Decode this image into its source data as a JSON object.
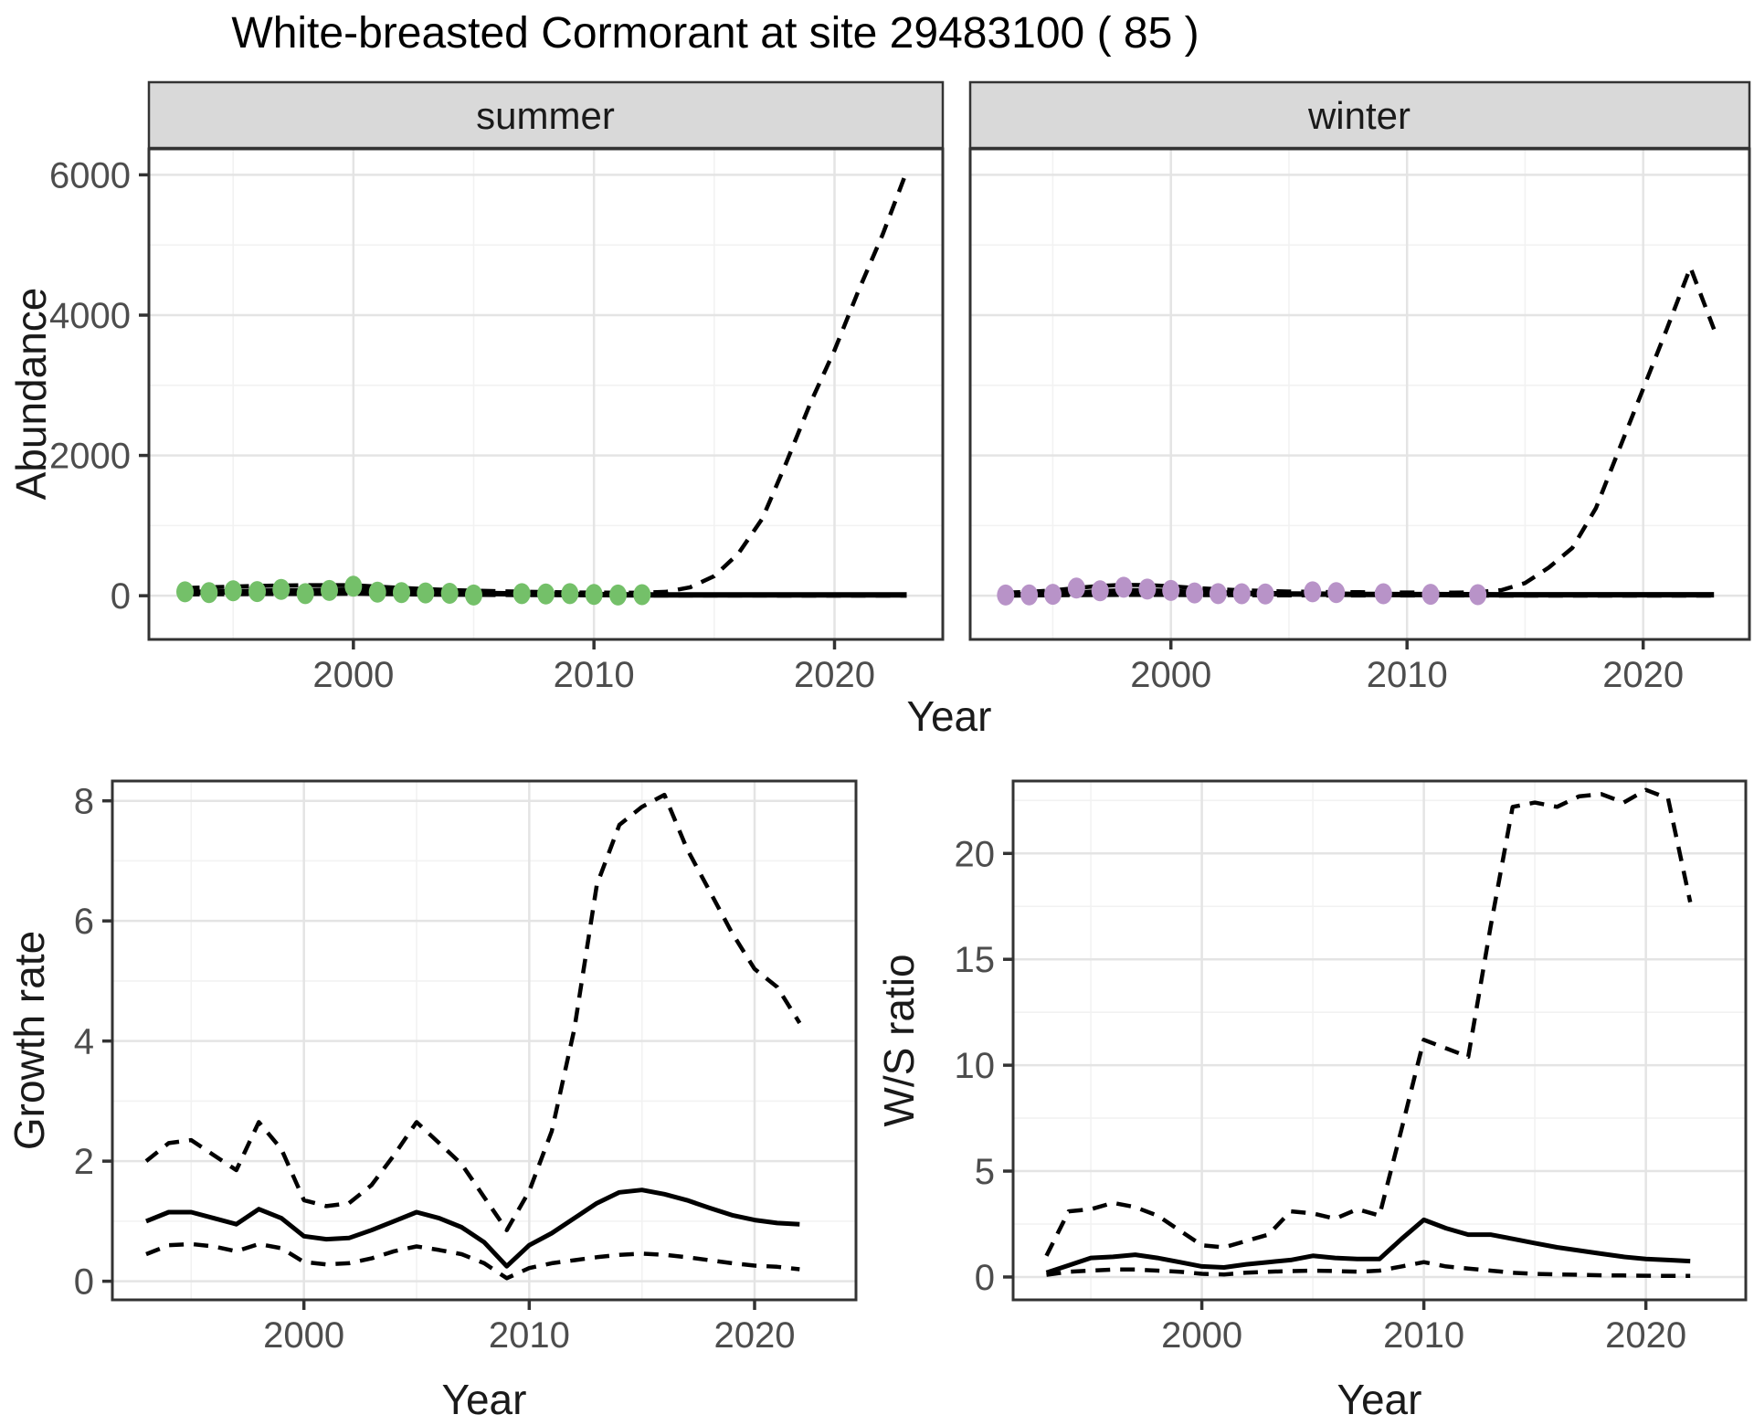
{
  "title": "White-breasted Cormorant at site 29483100 ( 85 )",
  "axes": {
    "year_label": "Year",
    "abundance_label": "Abundance",
    "growth_label": "Growth rate",
    "ws_label": "W/S ratio"
  },
  "facets": {
    "summer": "summer",
    "winter": "winter"
  },
  "colors": {
    "summer_point": "#74c069",
    "winter_point": "#b893c8",
    "line": "#000000",
    "strip_bg": "#d9d9d9",
    "panel_border": "#333333",
    "grid_major": "#e4e4e4",
    "grid_minor": "#f2f2f2",
    "tick_text": "#4d4d4d",
    "label_text": "#1a1a1a"
  },
  "chart_data": [
    {
      "id": "abundance_summer",
      "type": "line",
      "facet": "summer",
      "ylabel": "Abundance",
      "xlabel": "Year",
      "x_range": [
        1991.5,
        2024.5
      ],
      "y_range": [
        -623,
        6370
      ],
      "x_ticks": [
        2000,
        2010,
        2020
      ],
      "x_minor": [
        1995,
        2005,
        2015
      ],
      "y_ticks": [
        0,
        2000,
        4000,
        6000
      ],
      "y_minor": [
        1000,
        3000,
        5000
      ],
      "series": {
        "median": {
          "line": "solid",
          "x_start": 1993,
          "y": [
            45,
            50,
            58,
            65,
            68,
            72,
            76,
            80,
            70,
            60,
            50,
            42,
            35,
            30,
            26,
            22,
            19,
            16,
            14,
            13,
            12,
            12,
            12,
            12,
            12,
            12,
            12,
            12,
            12,
            12,
            12
          ]
        },
        "upper_ci": {
          "line": "dashed",
          "x_start": 1993,
          "y": [
            110,
            120,
            130,
            140,
            145,
            150,
            150,
            150,
            130,
            112,
            95,
            82,
            72,
            64,
            58,
            52,
            48,
            45,
            43,
            42,
            55,
            120,
            280,
            600,
            1100,
            1900,
            2750,
            3500,
            4350,
            5150,
            6050
          ]
        },
        "lower_ci": {
          "line": "dashed",
          "x_start": 1993,
          "y": [
            18,
            20,
            22,
            24,
            25,
            26,
            27,
            28,
            24,
            20,
            17,
            14,
            12,
            10,
            9,
            8,
            7,
            6,
            5,
            5,
            4,
            4,
            3,
            3,
            3,
            2,
            2,
            2,
            2,
            2,
            2
          ]
        }
      },
      "points": {
        "color": "summer_point",
        "x": [
          1993,
          1994,
          1995,
          1996,
          1997,
          1998,
          1999,
          2000,
          2001,
          2002,
          2003,
          2004,
          2005,
          2007,
          2008,
          2009,
          2010,
          2011,
          2012
        ],
        "y": [
          55,
          45,
          70,
          60,
          90,
          30,
          75,
          135,
          50,
          45,
          40,
          35,
          10,
          30,
          25,
          30,
          18,
          10,
          15
        ]
      }
    },
    {
      "id": "abundance_winter",
      "type": "line",
      "facet": "winter",
      "ylabel": "Abundance",
      "xlabel": "Year",
      "x_range": [
        1991.5,
        2024.5
      ],
      "y_range": [
        -623,
        6370
      ],
      "x_ticks": [
        2000,
        2010,
        2020
      ],
      "x_minor": [
        1995,
        2005,
        2015
      ],
      "y_ticks": [
        0,
        2000,
        4000,
        6000
      ],
      "y_minor": [
        1000,
        3000,
        5000
      ],
      "series": {
        "median": {
          "line": "solid",
          "x_start": 1993,
          "y": [
            12,
            15,
            22,
            38,
            55,
            70,
            68,
            60,
            48,
            40,
            34,
            29,
            25,
            23,
            21,
            19,
            18,
            17,
            16,
            15,
            15,
            14,
            14,
            14,
            14,
            14,
            14,
            14,
            14,
            14,
            14
          ]
        },
        "upper_ci": {
          "line": "dashed",
          "x_start": 1993,
          "y": [
            45,
            55,
            75,
            110,
            140,
            155,
            150,
            135,
            110,
            92,
            78,
            68,
            60,
            55,
            52,
            50,
            48,
            46,
            45,
            44,
            50,
            80,
            180,
            400,
            680,
            1250,
            2100,
            2950,
            3800,
            4680,
            3800
          ]
        },
        "lower_ci": {
          "line": "dashed",
          "x_start": 1993,
          "y": [
            4,
            5,
            6,
            8,
            10,
            12,
            12,
            11,
            9,
            8,
            7,
            6,
            5,
            5,
            4,
            4,
            4,
            3,
            3,
            3,
            3,
            2,
            2,
            2,
            2,
            2,
            2,
            2,
            2,
            2,
            2
          ]
        }
      },
      "points": {
        "color": "winter_point",
        "x": [
          1993,
          1994,
          1995,
          1996,
          1997,
          1998,
          1999,
          2000,
          2001,
          2002,
          2003,
          2004,
          2006,
          2007,
          2009,
          2011,
          2013
        ],
        "y": [
          10,
          12,
          20,
          110,
          70,
          120,
          95,
          75,
          40,
          30,
          28,
          25,
          55,
          45,
          28,
          20,
          15
        ]
      }
    },
    {
      "id": "growth_rate",
      "type": "line",
      "facet": null,
      "ylabel": "Growth rate",
      "xlabel": "Year",
      "x_range": [
        1991.5,
        2024.5
      ],
      "y_range": [
        -0.31,
        8.33
      ],
      "x_ticks": [
        2000,
        2010,
        2020
      ],
      "x_minor": [
        1995,
        2005,
        2015
      ],
      "y_ticks": [
        0,
        2,
        4,
        6,
        8
      ],
      "y_minor": [
        1,
        3,
        5,
        7
      ],
      "series": {
        "median": {
          "line": "solid",
          "x_start": 1993,
          "y": [
            1.0,
            1.15,
            1.15,
            1.05,
            0.95,
            1.2,
            1.05,
            0.75,
            0.7,
            0.72,
            0.85,
            1.0,
            1.15,
            1.05,
            0.9,
            0.65,
            0.25,
            0.6,
            0.8,
            1.05,
            1.3,
            1.48,
            1.52,
            1.45,
            1.35,
            1.22,
            1.1,
            1.02,
            0.97,
            0.95
          ]
        },
        "upper_ci": {
          "line": "dashed",
          "x_start": 1993,
          "y": [
            2.0,
            2.3,
            2.35,
            2.1,
            1.85,
            2.65,
            2.2,
            1.35,
            1.25,
            1.3,
            1.6,
            2.1,
            2.65,
            2.3,
            1.95,
            1.4,
            0.85,
            1.5,
            2.5,
            4.2,
            6.6,
            7.6,
            7.9,
            8.1,
            7.2,
            6.5,
            5.8,
            5.2,
            4.9,
            4.3
          ]
        },
        "lower_ci": {
          "line": "dashed",
          "x_start": 1993,
          "y": [
            0.45,
            0.6,
            0.62,
            0.58,
            0.5,
            0.62,
            0.55,
            0.32,
            0.28,
            0.3,
            0.38,
            0.5,
            0.58,
            0.52,
            0.45,
            0.3,
            0.05,
            0.22,
            0.3,
            0.35,
            0.4,
            0.44,
            0.46,
            0.44,
            0.4,
            0.35,
            0.3,
            0.26,
            0.24,
            0.2
          ]
        }
      },
      "points": null
    },
    {
      "id": "ws_ratio",
      "type": "line",
      "facet": null,
      "ylabel": "W/S ratio",
      "xlabel": "Year",
      "x_range": [
        1991.5,
        2024.5
      ],
      "y_range": [
        -1.08,
        23.42
      ],
      "x_ticks": [
        2000,
        2010,
        2020
      ],
      "x_minor": [
        1995,
        2005,
        2015
      ],
      "y_ticks": [
        0,
        5,
        10,
        15,
        20
      ],
      "y_minor": [
        2.5,
        7.5,
        12.5,
        17.5,
        22.5
      ],
      "series": {
        "median": {
          "line": "solid",
          "x_start": 1993,
          "y": [
            0.2,
            0.55,
            0.9,
            0.95,
            1.05,
            0.9,
            0.7,
            0.5,
            0.45,
            0.6,
            0.7,
            0.8,
            1.0,
            0.9,
            0.85,
            0.85,
            1.8,
            2.7,
            2.3,
            2.0,
            2.0,
            1.8,
            1.6,
            1.4,
            1.25,
            1.1,
            0.95,
            0.85,
            0.8,
            0.75
          ]
        },
        "upper_ci": {
          "line": "dashed",
          "x_start": 1993,
          "y": [
            1.0,
            3.1,
            3.2,
            3.5,
            3.3,
            2.9,
            2.2,
            1.5,
            1.4,
            1.7,
            2.0,
            3.1,
            3.0,
            2.75,
            3.2,
            2.9,
            7.0,
            11.2,
            10.8,
            10.4,
            16.5,
            22.2,
            22.4,
            22.2,
            22.7,
            22.8,
            22.4,
            23.0,
            22.6,
            17.7
          ]
        },
        "lower_ci": {
          "line": "dashed",
          "x_start": 1993,
          "y": [
            0.1,
            0.25,
            0.3,
            0.35,
            0.35,
            0.3,
            0.25,
            0.15,
            0.12,
            0.2,
            0.25,
            0.28,
            0.3,
            0.28,
            0.25,
            0.3,
            0.5,
            0.7,
            0.5,
            0.4,
            0.3,
            0.2,
            0.15,
            0.12,
            0.1,
            0.08,
            0.07,
            0.06,
            0.05,
            0.05
          ]
        }
      },
      "points": null
    }
  ]
}
